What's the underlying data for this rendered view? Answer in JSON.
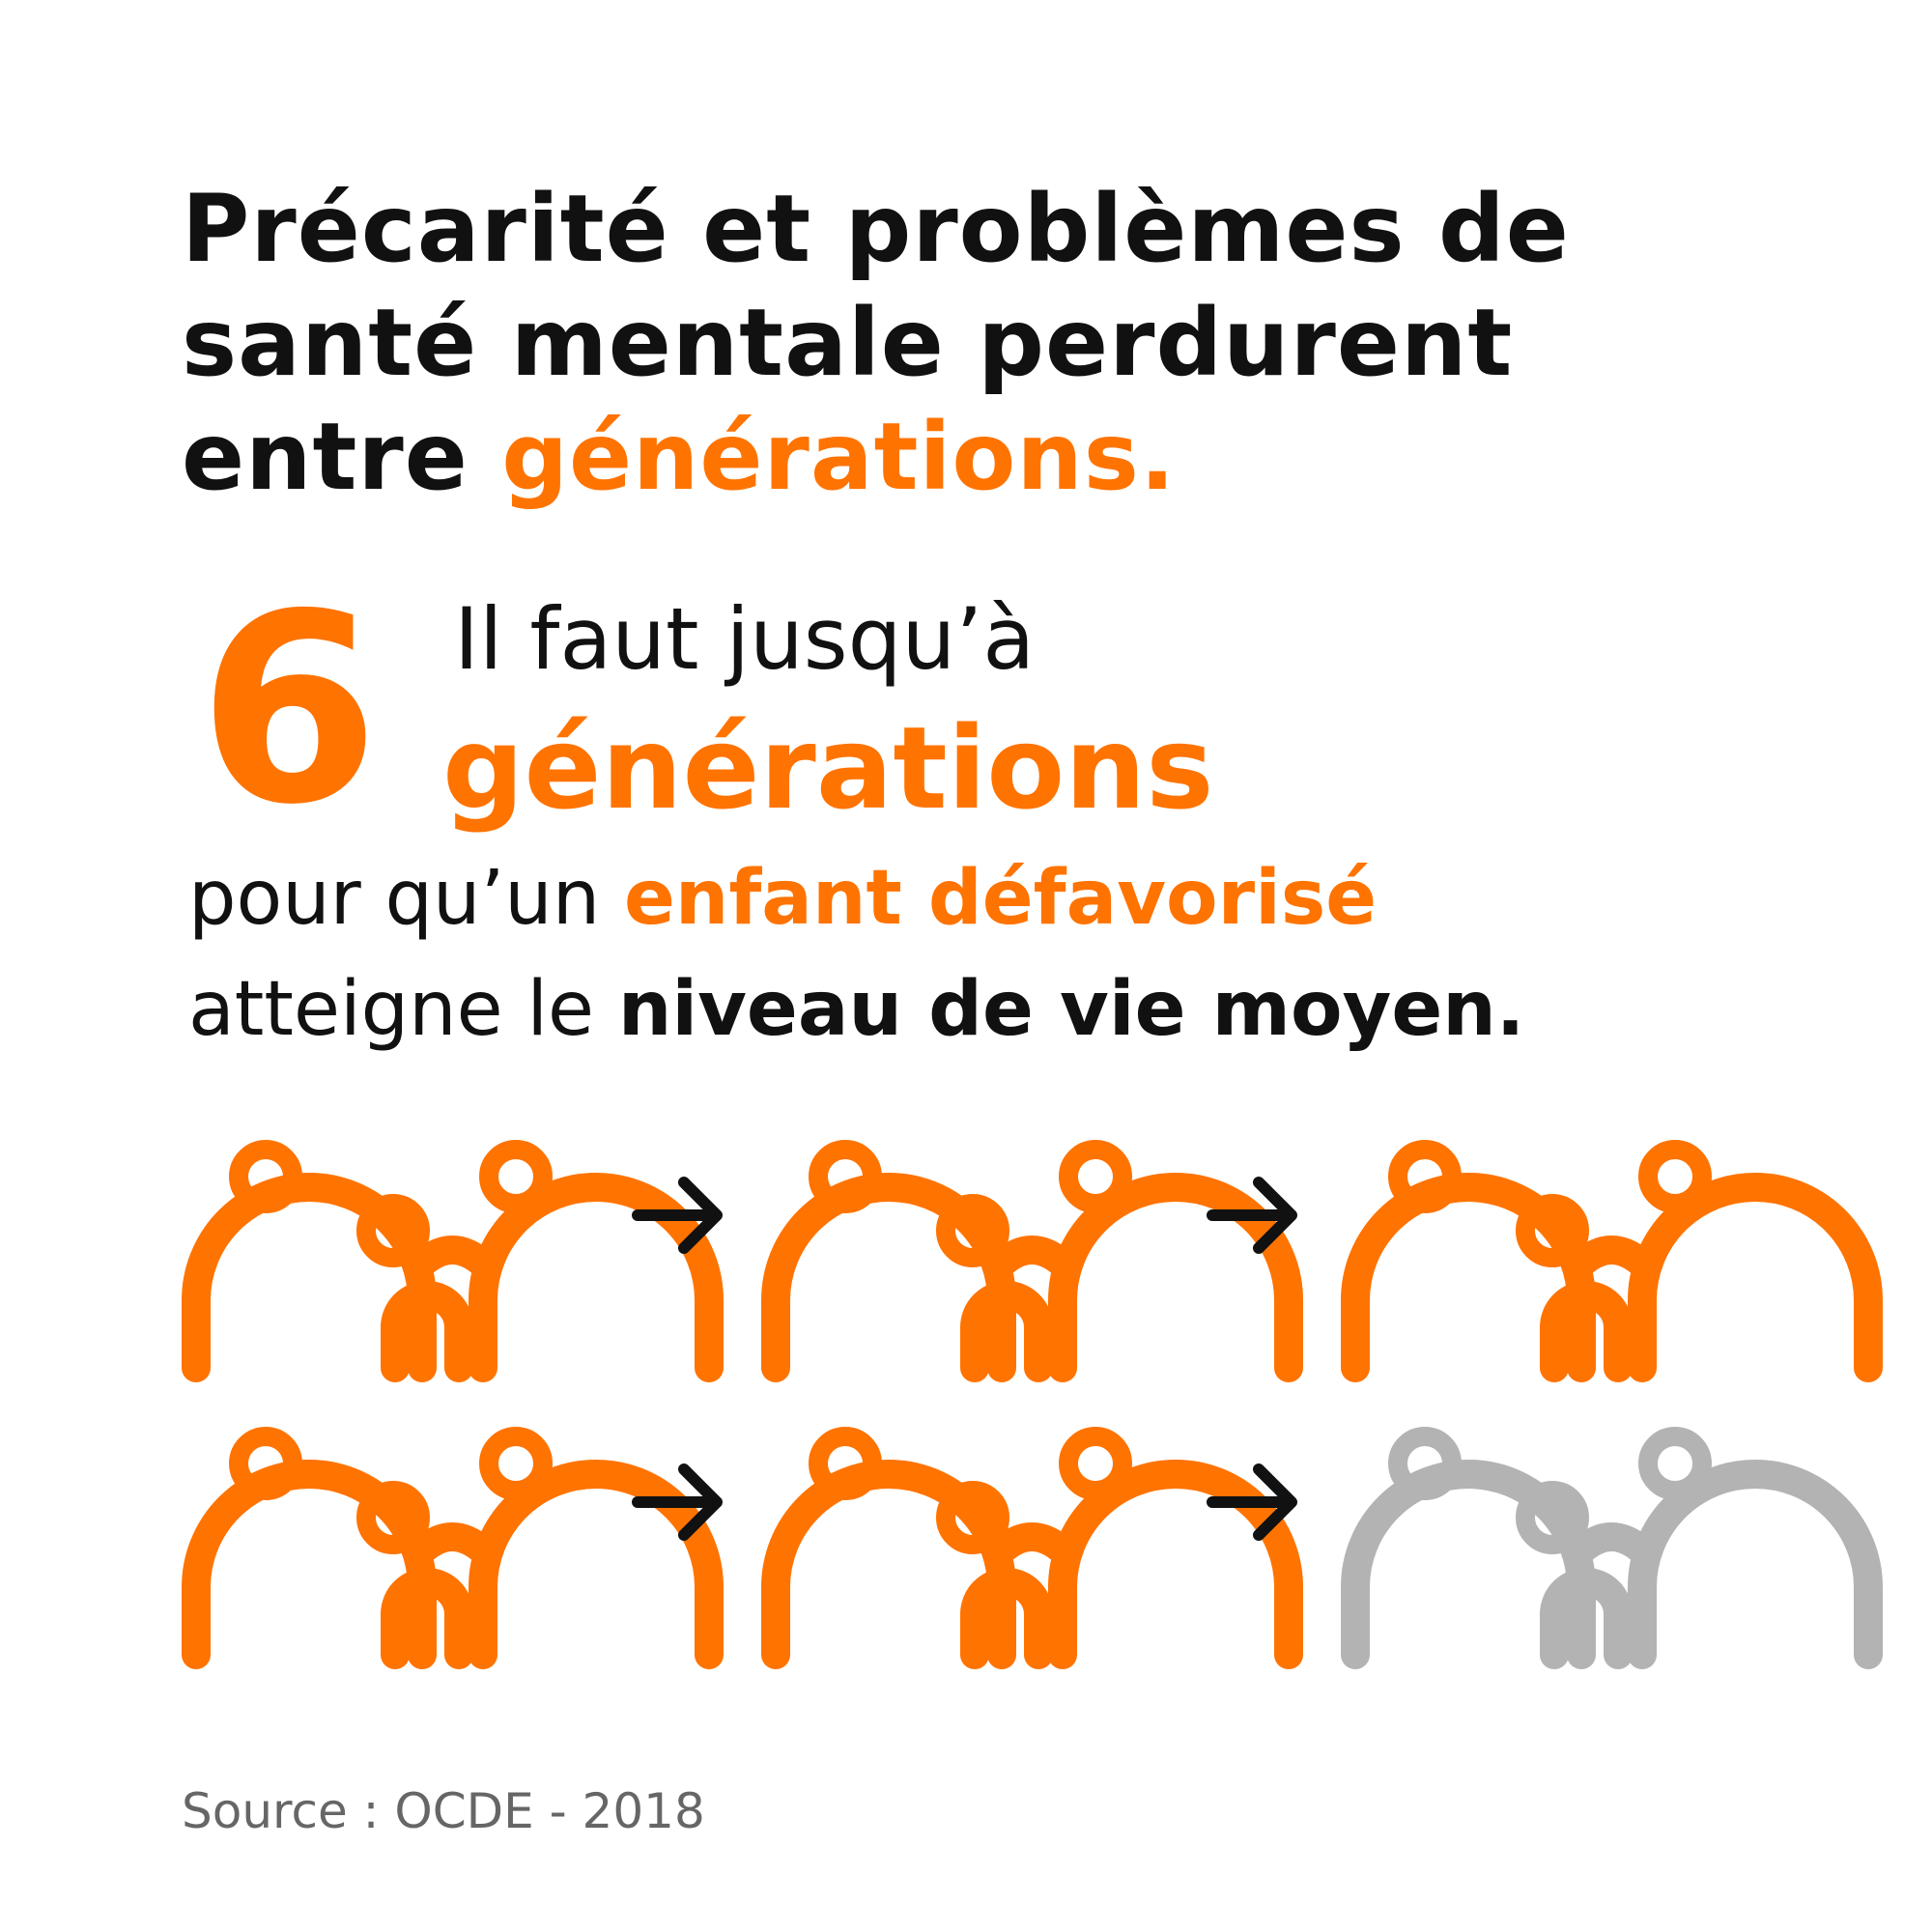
{
  "title": {
    "line1": "Précarité et problèmes de",
    "line2": "santé mentale perdurent",
    "line3_start": "entre ",
    "line3_accent": "générations."
  },
  "stat": {
    "number": "6",
    "line1": "Il faut jusqu’à",
    "line2": "générations",
    "line3_start": "pour qu’un ",
    "line3_accent": "enfant défavorisé",
    "line4_start": "atteigne le ",
    "line4_bold": "niveau de vie moyen."
  },
  "generations": {
    "total": 6,
    "reached": 5,
    "icon": "family-group-icon",
    "connector_icon": "arrow-right-icon"
  },
  "colors": {
    "accent": "#ff7300",
    "text": "#111111",
    "inactive": "#b3b3b3",
    "source": "#666666"
  },
  "source": "Source : OCDE - 2018"
}
